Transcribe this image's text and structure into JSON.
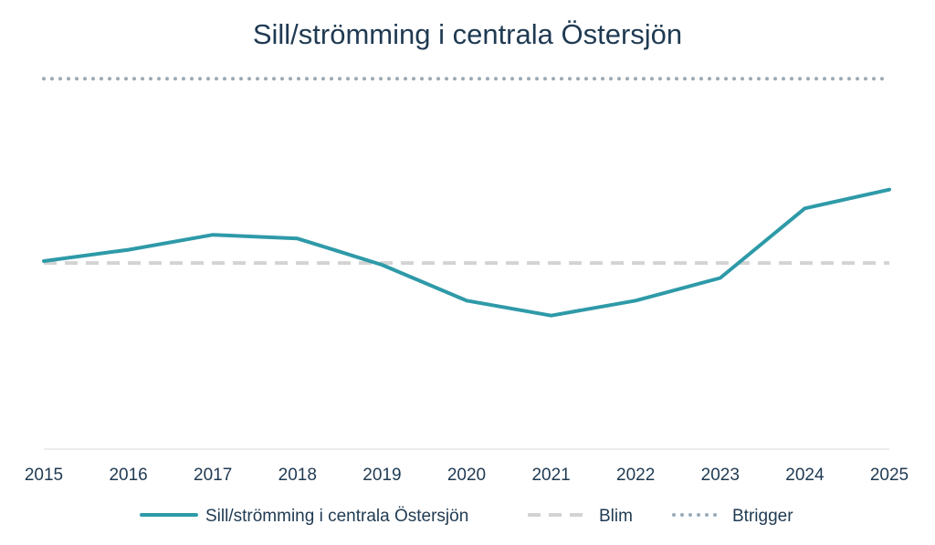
{
  "chart_data": {
    "type": "line",
    "title": "Sill/strömming i centrala Östersjön",
    "xlabel": "",
    "ylabel": "",
    "x": [
      "2015",
      "2016",
      "2017",
      "2018",
      "2019",
      "2020",
      "2021",
      "2022",
      "2023",
      "2024",
      "2025"
    ],
    "ylim": [
      0,
      100
    ],
    "grid": false,
    "legend_position": "bottom",
    "series": [
      {
        "name": "Sill/strömming i centrala Östersjön",
        "style": "solid",
        "color": "#2e9aa8",
        "values": [
          50.0,
          53.0,
          57.0,
          56.0,
          49.0,
          39.5,
          35.5,
          39.5,
          45.5,
          64.0,
          69.0
        ]
      },
      {
        "name": "Blim",
        "style": "dashed",
        "color": "#d3d3d3",
        "values": [
          49.5,
          49.5,
          49.5,
          49.5,
          49.5,
          49.5,
          49.5,
          49.5,
          49.5,
          49.5,
          49.5
        ]
      },
      {
        "name": "Btrigger",
        "style": "dotted",
        "color": "#9aaab7",
        "values": [
          98.5,
          98.5,
          98.5,
          98.5,
          98.5,
          98.5,
          98.5,
          98.5,
          98.5,
          98.5,
          98.5
        ]
      }
    ]
  }
}
